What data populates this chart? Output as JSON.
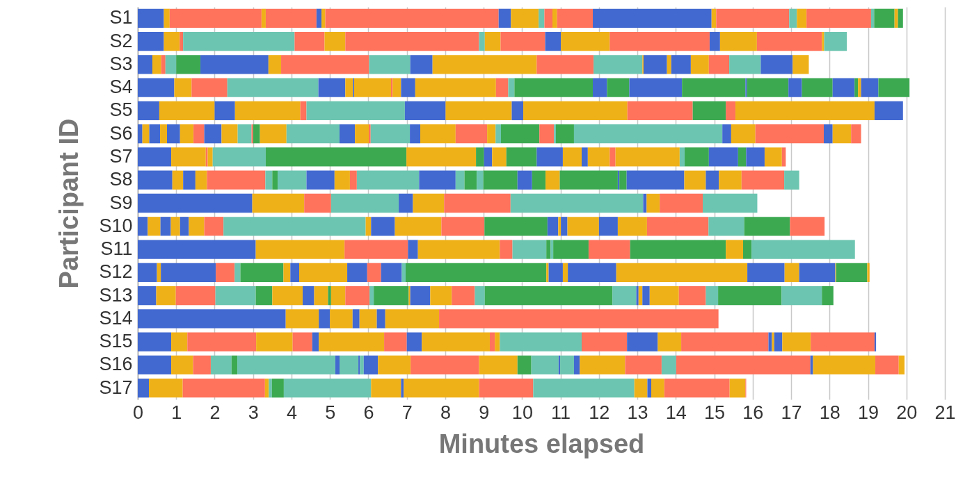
{
  "chart_data": {
    "type": "bar",
    "orientation": "horizontal",
    "stacked": true,
    "xlabel": "Minutes elapsed",
    "ylabel": "Participant ID",
    "categories": [
      "S1",
      "S2",
      "S3",
      "S4",
      "S5",
      "S6",
      "S7",
      "S8",
      "S9",
      "S10",
      "S11",
      "S12",
      "S13",
      "S14",
      "S15",
      "S16",
      "S17"
    ],
    "xlim": [
      0,
      21
    ],
    "xticks": [
      0,
      1,
      2,
      3,
      4,
      5,
      6,
      7,
      8,
      9,
      10,
      11,
      12,
      13,
      14,
      15,
      16,
      17,
      18,
      19,
      20,
      21
    ],
    "grid": "x",
    "series": [
      {
        "color": "#4269d0",
        "values": [
          0.68,
          0.68,
          0.38,
          0.95,
          0.56,
          0.12,
          0.87,
          0.9,
          2.98,
          0.26,
          3.07,
          0.5,
          0.48,
          3.85,
          0.87,
          0.87,
          0.29
        ]
      },
      {
        "color": "#efb118",
        "values": [
          0.15,
          0.41,
          0.23,
          0.45,
          1.44,
          0.18,
          0.9,
          0.28,
          1.35,
          0.33,
          2.31,
          0.1,
          0.51,
          0.86,
          0.42,
          0.57,
          0.88
        ]
      },
      {
        "values": [
          2.39,
          0.09,
          0.11,
          0.93,
          0.53,
          0.28,
          0.05,
          0.32,
          0.7,
          0.27,
          1.65,
          1.43,
          1.03,
          0.29,
          1.79,
          0.46,
          2.14
        ],
        "colors": [
          "#ff725c",
          "#ff725c",
          "#ff725c",
          "#ff725c",
          "#4269d0",
          "#4269d0",
          "#ff725c",
          "#4269d0",
          "#ff725c",
          "#4269d0",
          "#ff725c",
          "#4269d0",
          "#ff725c",
          "#4269d0",
          "#ff725c",
          "#ff725c",
          "#ff725c"
        ]
      },
      {
        "values": [
          0.11,
          2.9,
          0.28,
          2.37,
          1.7,
          0.18,
          0.13,
          0.3,
          1.76,
          0.24,
          0.26,
          0.49,
          1.05,
          0.59,
          0.95,
          0.54,
          0.1
        ],
        "colors": [
          "#efb118",
          "#6cc5b0",
          "#6cc5b0",
          "#6cc5b0",
          "#efb118",
          "#efb118",
          "#efb118",
          "#efb118",
          "#6cc5b0",
          "#efb118",
          "#4269d0",
          "#ff725c",
          "#6cc5b0",
          "#efb118",
          "#efb118",
          "#6cc5b0",
          "#efb118"
        ]
      },
      {
        "values": [
          1.32,
          0.78,
          0.63,
          0.7,
          0.16,
          0.34,
          1.38,
          1.52,
          0.37,
          0.23,
          2.13,
          0.15,
          0.43,
          0.18,
          0.51,
          0.15,
          0.08
        ],
        "colors": [
          "#ff725c",
          "#ff725c",
          "#3ca951",
          "#4269d0",
          "#ff725c",
          "#4269d0",
          "#6cc5b0",
          "#ff725c",
          "#4269d0",
          "#4269d0",
          "#efb118",
          "#6cc5b0",
          "#3ca951",
          "#4269d0",
          "#ff725c",
          "#3ca951",
          "#6cc5b0"
        ]
      },
      {
        "values": [
          0.13,
          0.54,
          1.77,
          0.2,
          2.56,
          0.35,
          3.66,
          0.18,
          0.81,
          0.4,
          0.33,
          1.12,
          0.79,
          0.45,
          0.17,
          2.55,
          0.31
        ],
        "colors": [
          "#4269d0",
          "#efb118",
          "#4269d0",
          "#efb118",
          "#6cc5b0",
          "#efb118",
          "#3ca951",
          "#6cc5b0",
          "#efb118",
          "#efb118",
          "#ff725c",
          "#3ca951",
          "#efb118",
          "#efb118",
          "#4269d0",
          "#6cc5b0",
          "#3ca951"
        ]
      },
      {
        "values": [
          0.1,
          3.48,
          0.33,
          0.03,
          1.06,
          0.28,
          1.81,
          0.14,
          1.73,
          0.5,
          0.88,
          0.18,
          0.3,
          0.22,
          1.7,
          0.11,
          2.27
        ],
        "colors": [
          "#efb118",
          "#ff725c",
          "#efb118",
          "#4269d0",
          "#4269d0",
          "#ff725c",
          "#efb118",
          "#3ca951",
          "#ff725c",
          "#ff725c",
          "#6cc5b0",
          "#efb118",
          "#4269d0",
          "#4269d0",
          "#efb118",
          "#4269d0",
          "#6cc5b0"
        ]
      },
      {
        "values": [
          4.51,
          0.15,
          2.29,
          0.96,
          1.72,
          0.45,
          0.21,
          0.75,
          3.45,
          3.7,
          0.11,
          0.23,
          0.36,
          1.4,
          0.59,
          0.49,
          0.78
        ],
        "colors": [
          "#ff725c",
          "#6cc5b0",
          "#ff725c",
          "#efb118",
          "#efb118",
          "#4269d0",
          "#3ca951",
          "#6cc5b0",
          "#6cc5b0",
          "#6cc5b0",
          "#3ca951",
          "#4269d0",
          "#efb118",
          "#efb118",
          "#ff725c",
          "#6cc5b0",
          "#efb118"
        ]
      },
      {
        "values": [
          0.32,
          0.41,
          1.07,
          0.04,
          0.3,
          0.42,
          0.21,
          0.73,
          0.09,
          0.14,
          0.07,
          1.25,
          0.08,
          7.27,
          0.39,
          0.04,
          0.07
        ],
        "colors": [
          "#4269d0",
          "#efb118",
          "#6cc5b0",
          "#ff725c",
          "#4269d0",
          "#efb118",
          "#4269d0",
          "#4269d0",
          "#4269d0",
          "#efb118",
          "#6cc5b0",
          "#efb118",
          "#3ca951",
          "#ff725c",
          "#4269d0",
          "#4269d0",
          "#4269d0"
        ]
      },
      {
        "values": [
          0.72,
          1.16,
          0.58,
          0.22,
          2.71,
          0.36,
          0.37,
          0.4,
          0.34,
          0.62,
          0.92,
          0.52,
          0.37,
          null,
          1.77,
          0.1,
          1.96
        ],
        "colors": [
          "#efb118",
          "#ff725c",
          "#4269d0",
          "#efb118",
          "#efb118",
          "#6cc5b0",
          "#efb118",
          "#efb118",
          "#efb118",
          "#4269d0",
          "#3ca951",
          "#4269d0",
          "#efb118",
          null,
          "#efb118",
          "#6cc5b0",
          "#efb118"
        ]
      },
      {
        "values": [
          0.15,
          0.41,
          2.71,
          0.37,
          1.7,
          0.04,
          0.79,
          0.18,
          1.12,
          1.21,
          1.08,
          0.36,
          0.63,
          null,
          0.13,
          0.37,
          1.41
        ],
        "colors": [
          "#6cc5b0",
          "#4269d0",
          "#efb118",
          "#4269d0",
          "#ff725c",
          "#ff725c",
          "#3ca951",
          "#ff725c",
          "#ff725c",
          "#efb118",
          "#ff725c",
          "#ff725c",
          "#ff725c",
          null,
          "#ff725c",
          "#4269d0",
          "#ff725c"
        ]
      },
      {
        "values": [
          0.21,
          1.27,
          1.48,
          2.1,
          0.86,
          0.18,
          0.68,
          1.62,
          1.42,
          1.12,
          2.49,
          0.54,
          0.11,
          null,
          0.13,
          0.85,
          2.63
        ],
        "colors": [
          "#ff725c",
          "#efb118",
          "#ff725c",
          "#efb118",
          "#3ca951",
          "#3ca951",
          "#4269d0",
          "#6cc5b0",
          "#6cc5b0",
          "#ff725c",
          "#3ca951",
          "#4269d0",
          "#6cc5b0",
          null,
          "#efb118",
          "#efb118",
          "#6cc5b0"
        ]
      },
      {
        "values": [
          0.12,
          2.6,
          1.27,
          0.32,
          0.25,
          0.69,
          0.49,
          0.95,
          null,
          1.64,
          0.45,
          0.1,
          0.91,
          null,
          2.13,
          1.78,
          0.34
        ],
        "colors": [
          "#efb118",
          "#ff725c",
          "#6cc5b0",
          "#ff725c",
          "#ff725c",
          "#efb118",
          "#efb118",
          "#4269d0",
          null,
          "#3ca951",
          "#efb118",
          "#6cc5b0",
          "#3ca951",
          null,
          "#6cc5b0",
          "#ff725c",
          "#efb118"
        ]
      },
      {
        "values": [
          0.93,
          0.27,
          0.03,
          0.16,
          3.62,
          1.38,
          0.16,
          0.23,
          null,
          0.28,
          0.22,
          3.66,
          0.04,
          null,
          1.18,
          1.0,
          0.1
        ],
        "colors": [
          "#ff725c",
          "#4269d0",
          "#efb118",
          "#6cc5b0",
          "#efb118",
          "#6cc5b0",
          "#4269d0",
          "#6cc5b0",
          null,
          "#4269d0",
          "#3ca951",
          "#3ca951",
          "#efb118",
          null,
          "#ff725c",
          "#efb118",
          "#4269d0"
        ]
      },
      {
        "values": [
          3.09,
          0.96,
          0.61,
          2.04,
          0.74,
          0.4,
          0.57,
          0.32,
          null,
          0.07,
          2.69,
          0.06,
          0.52,
          null,
          0.8,
          0.36,
          0.34
        ],
        "colors": [
          "#4269d0",
          "#efb118",
          "#4269d0",
          "#3ca951",
          "#4269d0",
          "#4269d0",
          "#efb118",
          "#3ca951",
          null,
          "#efb118",
          "#6cc5b0",
          "#efb118",
          "#4269d0",
          null,
          "#4269d0",
          "#3ca951",
          "#efb118"
        ]
      },
      {
        "values": [
          0.12,
          1.69,
          0.11,
          0.37,
          null,
          0.36,
          0.15,
          0.17,
          null,
          0.17,
          null,
          0.37,
          0.56,
          null,
          0.61,
          0.71,
          1.7
        ],
        "colors": [
          "#efb118",
          "#ff725c",
          "#efb118",
          "#4269d0",
          null,
          "#efb118",
          "#ff725c",
          "#6cc5b0",
          null,
          "#4269d0",
          null,
          "#4269d0",
          "#efb118",
          null,
          "#efb118",
          "#6cc5b0",
          "#ff725c"
        ]
      },
      {
        "values": [
          1.9,
          0.06,
          0.51,
          0.58,
          null,
          0.05,
          1.67,
          0.89,
          null,
          0.82,
          null,
          0.13,
          0.6,
          null,
          2.27,
          0.04,
          0.41
        ],
        "colors": [
          "#ff725c",
          "#efb118",
          "#4269d0",
          "#3ca951",
          null,
          "#ff725c",
          "#efb118",
          "#3ca951",
          null,
          "#efb118",
          null,
          "#efb118",
          "#ff725c",
          null,
          "#ff725c",
          "#4269d0",
          "#efb118"
        ]
      },
      {
        "values": [
          0.2,
          0.59,
          0.47,
          1.37,
          null,
          1.02,
          0.13,
          0.38,
          null,
          0.49,
          null,
          1.26,
          0.26,
          null,
          0.09,
          0.36,
          0.02
        ],
        "colors": [
          "#6cc5b0",
          "#6cc5b0",
          "#efb118",
          "#4269d0",
          null,
          "#6cc5b0",
          "#6cc5b0",
          "#4269d0",
          null,
          "#4269d0",
          null,
          "#4269d0",
          "#6cc5b0",
          null,
          "#4269d0",
          "#6cc5b0",
          "#ff725c"
        ]
      },
      {
        "values": [
          0.25,
          null,
          0.53,
          1.65,
          null,
          0.27,
          0.63,
          0.35,
          null,
          0.76,
          null,
          3.41,
          3.32,
          null,
          0.06,
          0.15,
          null
        ],
        "colors": [
          "#efb118",
          null,
          "#ff725c",
          "#3ca951",
          null,
          "#4269d0",
          "#3ca951",
          "#3ca951",
          null,
          "#efb118",
          null,
          "#efb118",
          "#3ca951",
          null,
          "#efb118",
          "#4269d0",
          null
        ]
      },
      {
        "values": [
          1.68,
          null,
          0.82,
          0.04,
          null,
          0.92,
          0.76,
          0.37,
          null,
          1.6,
          null,
          0.97,
          0.62,
          null,
          0.21,
          1.18,
          null
        ],
        "colors": [
          "#ff725c",
          null,
          "#6cc5b0",
          "#4269d0",
          null,
          "#efb118",
          "#4269d0",
          "#efb118",
          null,
          "#ff725c",
          null,
          "#4269d0",
          "#6cc5b0",
          null,
          "#4269d0",
          "#efb118",
          null
        ]
      },
      {
        "values": [
          0.08,
          null,
          0.83,
          1.08,
          null,
          0.82,
          0.21,
          1.51,
          null,
          0.93,
          null,
          0.38,
          0.06,
          null,
          0.74,
          0.95,
          null
        ],
        "colors": [
          "#6cc5b0",
          null,
          "#4269d0",
          "#3ca951",
          null,
          "#ff725c",
          "#3ca951",
          "#3ca951",
          null,
          "#6cc5b0",
          null,
          "#efb118",
          "#4269d0",
          null,
          "#efb118",
          "#ff725c",
          null
        ]
      },
      {
        "values": [
          0.53,
          null,
          0.42,
          0.35,
          null,
          0.22,
          0.48,
          0.04,
          null,
          1.19,
          null,
          0.94,
          0.1,
          null,
          1.66,
          0.38,
          null
        ],
        "colors": [
          "#3ca951",
          null,
          "#efb118",
          "#4269d0",
          null,
          "#efb118",
          "#4269d0",
          "#4269d0",
          null,
          "#3ca951",
          null,
          "#4269d0",
          "#efb118",
          null,
          "#ff725c",
          "#6cc5b0",
          null
        ]
      },
      {
        "values": [
          0.09,
          null,
          null,
          0.8,
          null,
          0.14,
          0.45,
          0.19,
          null,
          0.9,
          null,
          0.02,
          0.19,
          null,
          0.04,
          3.49,
          null
        ],
        "colors": [
          "#efb118",
          null,
          null,
          "#3ca951",
          null,
          "#6cc5b0",
          "#efb118",
          "#3ca951",
          null,
          "#ff725c",
          null,
          "#efb118",
          "#4269d0",
          null,
          "#4269d0",
          "#ff725c",
          null
        ]
      },
      {
        "values": [
          0.13,
          null,
          null,
          0.57,
          null,
          1.0,
          0.1,
          1.5,
          null,
          null,
          null,
          0.81,
          0.76,
          null,
          null,
          0.07,
          null
        ],
        "colors": [
          "#3ca951",
          null,
          null,
          "#4269d0",
          null,
          "#3ca951",
          "#ff725c",
          "#4269d0",
          null,
          null,
          null,
          "#3ca951",
          "#efb118",
          null,
          null,
          "#4269d0",
          null
        ]
      },
      {
        "values": [
          null,
          null,
          null,
          0.09,
          null,
          0.38,
          null,
          0.56,
          null,
          null,
          null,
          0.06,
          0.7,
          null,
          null,
          1.62,
          null
        ],
        "colors": [
          null,
          null,
          null,
          "#3ca951",
          null,
          "#ff725c",
          null,
          "#efb118",
          null,
          null,
          null,
          "#efb118",
          "#ff725c",
          null,
          null,
          "#efb118",
          null
        ]
      },
      {
        "values": [
          null,
          null,
          null,
          0.08,
          null,
          0.05,
          null,
          0.34,
          null,
          null,
          null,
          null,
          0.32,
          null,
          null,
          0.61,
          null
        ],
        "colors": [
          null,
          null,
          null,
          "#efb118",
          null,
          "#6cc5b0",
          null,
          "#4269d0",
          null,
          null,
          null,
          null,
          "#6cc5b0",
          null,
          null,
          "#ff725c",
          null
        ]
      },
      {
        "values": [
          null,
          null,
          null,
          0.45,
          null,
          0.47,
          null,
          0.59,
          null,
          null,
          null,
          null,
          1.65,
          null,
          null,
          0.15,
          null
        ],
        "colors": [
          null,
          null,
          null,
          "#4269d0",
          null,
          "#3ca951",
          null,
          "#efb118",
          null,
          null,
          null,
          null,
          "#3ca951",
          null,
          null,
          "#efb118",
          null
        ]
      },
      {
        "values": [
          null,
          null,
          null,
          0.81,
          null,
          3.86,
          null,
          1.11,
          null,
          null,
          null,
          null,
          1.05,
          null,
          null,
          null,
          null
        ],
        "colors": [
          null,
          null,
          null,
          "#3ca951",
          null,
          "#6cc5b0",
          null,
          "#ff725c",
          null,
          null,
          null,
          null,
          "#6cc5b0",
          null,
          null,
          null,
          null
        ]
      },
      {
        "values": [
          null,
          null,
          null,
          null,
          null,
          0.23,
          null,
          0.39,
          null,
          null,
          null,
          null,
          0.3,
          null,
          null,
          null,
          null
        ],
        "colors": [
          null,
          null,
          null,
          null,
          null,
          "#4269d0",
          null,
          "#6cc5b0",
          null,
          null,
          null,
          null,
          "#3ca951",
          null,
          null,
          null,
          null
        ]
      },
      {
        "values": [
          null,
          null,
          null,
          null,
          null,
          0.63,
          null,
          null,
          null,
          null,
          null,
          null,
          null,
          null,
          null,
          null,
          null
        ],
        "colors": [
          null,
          null,
          null,
          null,
          null,
          "#efb118",
          null,
          null,
          null,
          null,
          null,
          null,
          null,
          null,
          null,
          null,
          null
        ]
      },
      {
        "values": [
          null,
          null,
          null,
          null,
          null,
          1.78,
          null,
          null,
          null,
          null,
          null,
          null,
          null,
          null,
          null,
          null,
          null
        ],
        "colors": [
          null,
          null,
          null,
          null,
          null,
          "#ff725c",
          null,
          null,
          null,
          null,
          null,
          null,
          null,
          null,
          null,
          null,
          null
        ]
      },
      {
        "values": [
          null,
          null,
          null,
          null,
          null,
          0.23,
          null,
          null,
          null,
          null,
          null,
          null,
          null,
          null,
          null,
          null,
          null
        ],
        "colors": [
          null,
          null,
          null,
          null,
          null,
          "#4269d0",
          null,
          null,
          null,
          null,
          null,
          null,
          null,
          null,
          null,
          null,
          null
        ]
      },
      {
        "values": [
          null,
          null,
          null,
          null,
          null,
          0.48,
          null,
          null,
          null,
          null,
          null,
          null,
          null,
          null,
          null,
          null,
          null
        ],
        "colors": [
          null,
          null,
          null,
          null,
          null,
          "#efb118",
          null,
          null,
          null,
          null,
          null,
          null,
          null,
          null,
          null,
          null,
          null
        ]
      },
      {
        "values": [
          null,
          null,
          null,
          null,
          null,
          0.26,
          null,
          null,
          null,
          null,
          null,
          null,
          null,
          null,
          null,
          null,
          null
        ],
        "colors": [
          null,
          null,
          null,
          null,
          null,
          "#ff725c",
          null,
          null,
          null,
          null,
          null,
          null,
          null,
          null,
          null,
          null,
          null
        ]
      }
    ]
  }
}
